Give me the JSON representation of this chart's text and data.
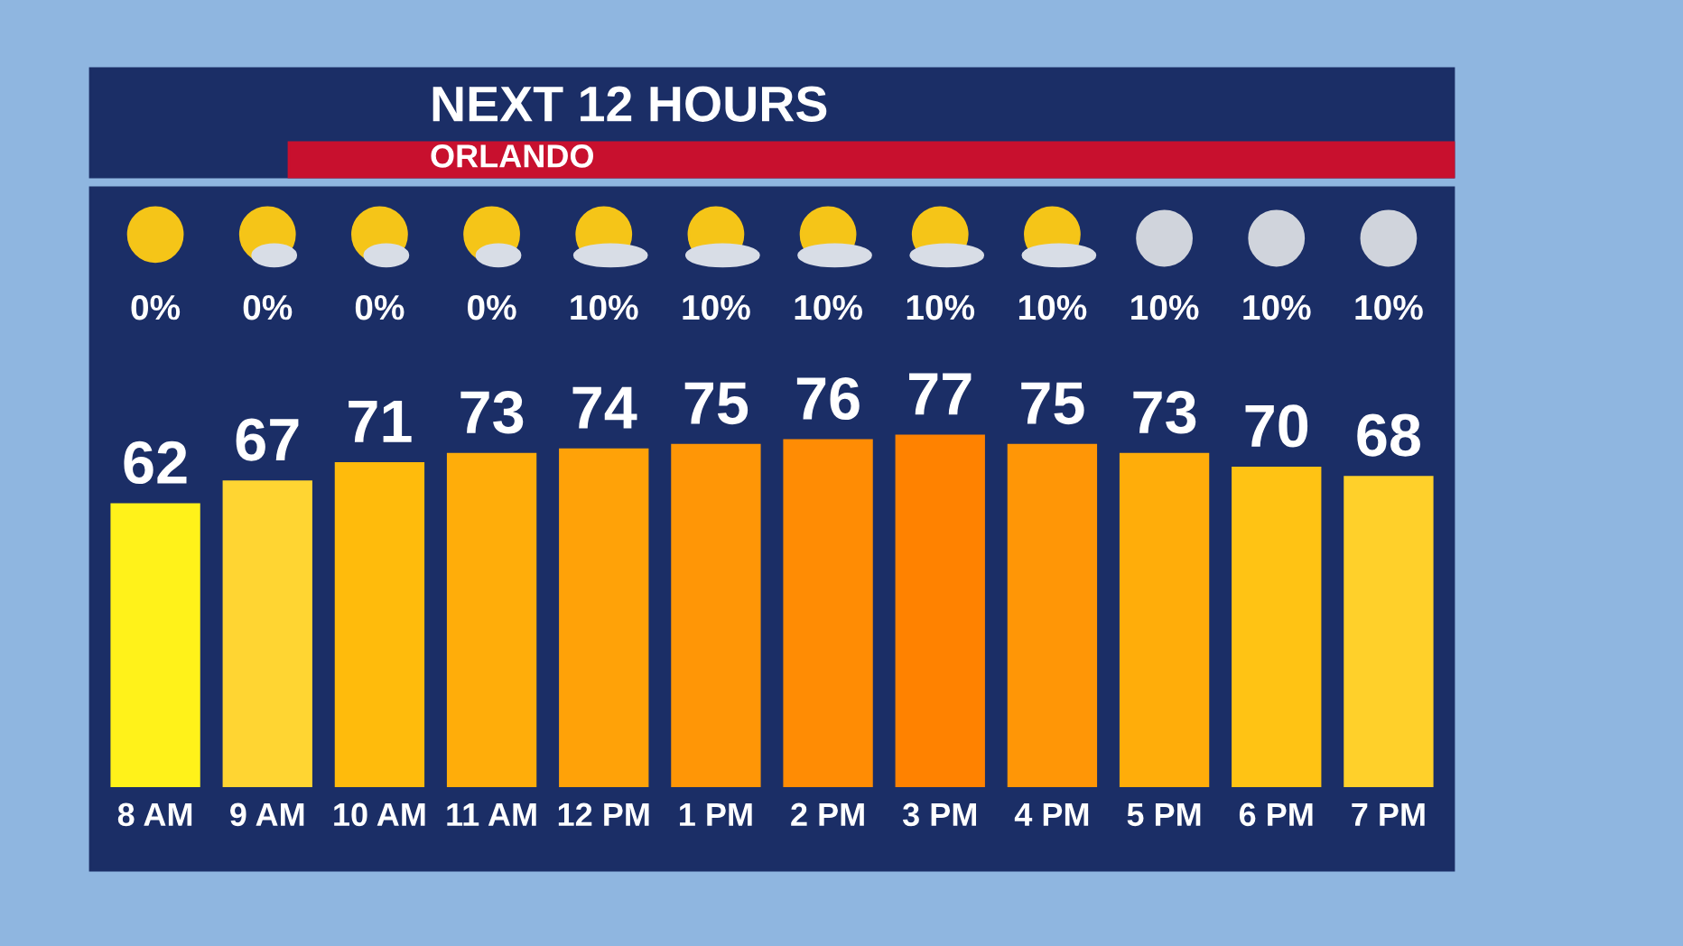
{
  "chart_data": {
    "type": "bar",
    "title": "NEXT 12 HOURS",
    "subtitle": "ORLANDO",
    "categories": [
      "8 AM",
      "9 AM",
      "10 AM",
      "11 AM",
      "12 PM",
      "1 PM",
      "2 PM",
      "3 PM",
      "4 PM",
      "5 PM",
      "6 PM",
      "7 PM"
    ],
    "values": [
      62,
      67,
      71,
      73,
      74,
      75,
      76,
      77,
      75,
      73,
      70,
      68
    ],
    "colors": [
      "#fff21a",
      "#ffd532",
      "#ffbb0c",
      "#ffad0a",
      "#ffa208",
      "#ff9606",
      "#ff8c04",
      "#ff8200",
      "#ff9606",
      "#ffad0a",
      "#ffc314",
      "#ffd02a"
    ],
    "tick_labels": "x",
    "data_labels": true,
    "grid": false,
    "annotations": [
      "0%",
      "0%",
      "0%",
      "0%",
      "10%",
      "10%",
      "10%",
      "10%",
      "10%",
      "10%",
      "10%",
      "10%"
    ]
  }
}
